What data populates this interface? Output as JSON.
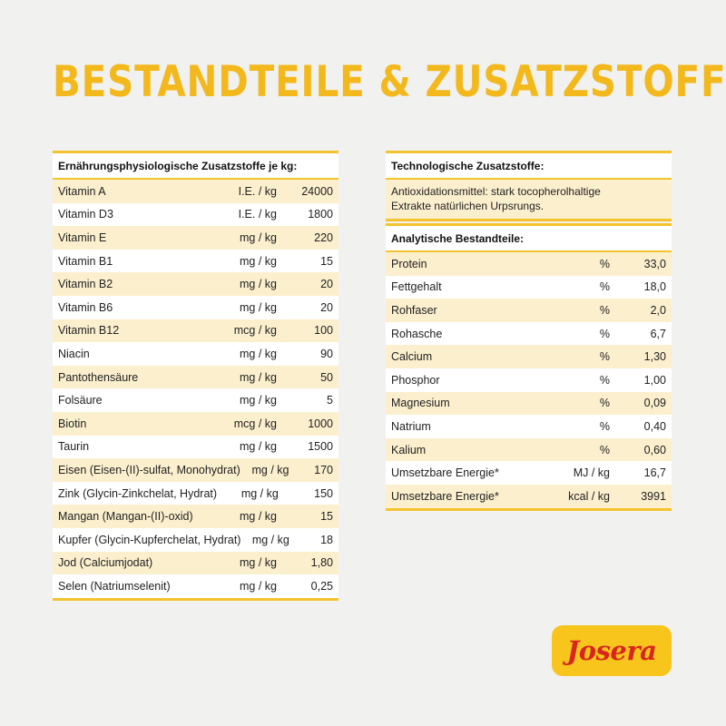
{
  "title": "BESTANDTEILE & ZUSATZSTOFFE",
  "nutritional": {
    "header": "Ernährungsphysiologische Zusatzstoffe je kg:",
    "rows": [
      {
        "name": "Vitamin A",
        "unit": "I.E. / kg",
        "value": "24000"
      },
      {
        "name": "Vitamin D3",
        "unit": "I.E. / kg",
        "value": "1800"
      },
      {
        "name": "Vitamin E",
        "unit": "mg / kg",
        "value": "220"
      },
      {
        "name": "Vitamin B1",
        "unit": "mg / kg",
        "value": "15"
      },
      {
        "name": "Vitamin B2",
        "unit": "mg / kg",
        "value": "20"
      },
      {
        "name": "Vitamin B6",
        "unit": "mg / kg",
        "value": "20"
      },
      {
        "name": "Vitamin B12",
        "unit": "mcg / kg",
        "value": "100"
      },
      {
        "name": "Niacin",
        "unit": "mg / kg",
        "value": "90"
      },
      {
        "name": "Pantothensäure",
        "unit": "mg / kg",
        "value": "50"
      },
      {
        "name": "Folsäure",
        "unit": "mg / kg",
        "value": "5"
      },
      {
        "name": "Biotin",
        "unit": "mcg / kg",
        "value": "1000"
      },
      {
        "name": "Taurin",
        "unit": "mg / kg",
        "value": "1500"
      },
      {
        "name": "Eisen (Eisen-(II)-sulfat, Monohydrat)",
        "unit": "mg / kg",
        "value": "170"
      },
      {
        "name": "Zink (Glycin-Zinkchelat, Hydrat)",
        "unit": "mg / kg",
        "value": "150"
      },
      {
        "name": "Mangan (Mangan-(II)-oxid)",
        "unit": "mg / kg",
        "value": "15"
      },
      {
        "name": "Kupfer (Glycin-Kupferchelat, Hydrat)",
        "unit": "mg / kg",
        "value": "18"
      },
      {
        "name": "Jod (Calciumjodat)",
        "unit": "mg / kg",
        "value": "1,80"
      },
      {
        "name": "Selen (Natriumselenit)",
        "unit": "mg / kg",
        "value": "0,25"
      }
    ]
  },
  "technological": {
    "header": "Technologische Zusatzstoffe:",
    "line1": "Antioxidationsmittel: stark tocopherolhaltige",
    "line2": "Extrakte natürlichen Urpsrungs."
  },
  "analytical": {
    "header": "Analytische Bestandteile:",
    "rows": [
      {
        "name": "Protein",
        "unit": "%",
        "value": "33,0"
      },
      {
        "name": "Fettgehalt",
        "unit": "%",
        "value": "18,0"
      },
      {
        "name": "Rohfaser",
        "unit": "%",
        "value": "2,0"
      },
      {
        "name": "Rohasche",
        "unit": "%",
        "value": "6,7"
      },
      {
        "name": "Calcium",
        "unit": "%",
        "value": "1,30"
      },
      {
        "name": "Phosphor",
        "unit": "%",
        "value": "1,00"
      },
      {
        "name": "Magnesium",
        "unit": "%",
        "value": "0,09"
      },
      {
        "name": "Natrium",
        "unit": "%",
        "value": "0,40"
      },
      {
        "name": "Kalium",
        "unit": "%",
        "value": "0,60"
      },
      {
        "name": "Umsetzbare Energie*",
        "unit": "MJ / kg",
        "value": "16,7"
      },
      {
        "name": "Umsetzbare Energie*",
        "unit": "kcal / kg",
        "value": "3991"
      }
    ]
  },
  "logo": "Josera",
  "colors": {
    "accent": "#f5c32e",
    "row_alt": "#fbefcd",
    "logo_text": "#d9261c",
    "title": "#f3b81c"
  }
}
